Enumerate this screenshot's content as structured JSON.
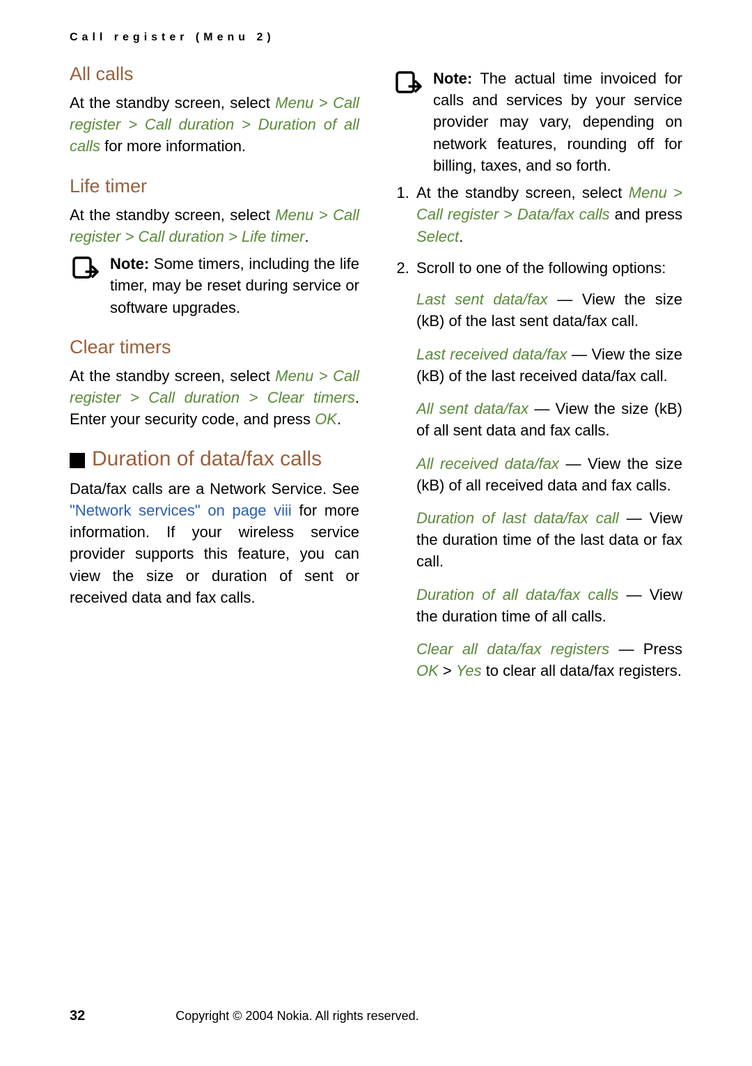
{
  "header": "Call register (Menu 2)",
  "colors": {
    "accent": "#9a5f3a",
    "menu": "#5a8a3a",
    "link": "#2a5fb4"
  },
  "left": {
    "all_calls": {
      "title": "All calls",
      "t1": "At the standby screen, select ",
      "p1": "Menu > Call register > Call duration > Duration of all calls",
      "t2": " for more information."
    },
    "life_timer": {
      "title": "Life timer",
      "t1": "At the standby screen, select ",
      "p1": "Menu > Call register > Call duration > Life timer",
      "t2": ".",
      "note_b": "Note:",
      "note": " Some timers, including the life timer, may be reset during service or software upgrades."
    },
    "clear_timers": {
      "title": "Clear timers",
      "t1": "At the standby screen, select ",
      "p1": "Menu > Call register > Call duration > Clear timers",
      "t2": ". Enter your security code, and press ",
      "ok": "OK",
      "t3": "."
    },
    "datafax": {
      "title": "Duration of data/fax calls",
      "t1": "Data/fax calls are a Network Service. See ",
      "link": "\"Network services\" on page viii",
      "t2": " for more information. If your wireless service provider supports this feature, you can view the size or duration of sent or received data and fax calls."
    }
  },
  "right": {
    "note_b": "Note:",
    "note": " The actual time invoiced for calls and services by your service provider may vary, depending on network features, rounding off for billing, taxes, and so forth.",
    "step1_a": "At the standby screen, select ",
    "step1_p": "Menu > Call register > Data/fax calls",
    "step1_b": " and press ",
    "step1_sel": "Select",
    "step1_c": ".",
    "step2": "Scroll to one of the following options:",
    "opts": [
      {
        "name": "Last sent data/fax",
        "desc": " — View the size (kB) of the last sent data/fax call."
      },
      {
        "name": "Last received data/fax",
        "desc": " — View the size (kB) of the last received data/fax call."
      },
      {
        "name": "All sent data/fax",
        "desc": " — View the size (kB) of all sent data and fax calls."
      },
      {
        "name": "All received data/fax",
        "desc": " — View the size (kB) of all received data and fax calls."
      },
      {
        "name": "Duration of last data/fax call",
        "desc": " — View the duration time of the last data or fax call."
      },
      {
        "name": "Duration of all data/fax calls",
        "desc": " — View the duration time of all calls."
      }
    ],
    "clear": {
      "name": "Clear all data/fax registers",
      "t1": " — Press ",
      "ok": "OK",
      "gt": " > ",
      "yes": "Yes",
      "t2": " to clear all data/fax registers."
    }
  },
  "footer": {
    "page": "32",
    "copyright": "Copyright © 2004 Nokia. All rights reserved."
  }
}
